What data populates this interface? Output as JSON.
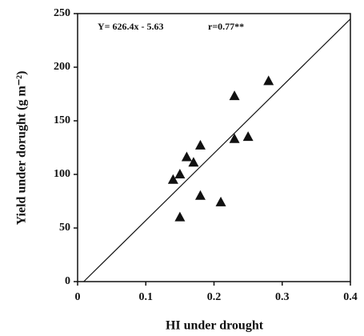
{
  "chart_data": {
    "type": "scatter",
    "x_label": "HI under drought",
    "y_label": "Yield under dorught (g m⁻²)",
    "annotations": [
      "Y= 626.4x - 5.63",
      "r=0.77**"
    ],
    "x": [
      0.14,
      0.15,
      0.15,
      0.16,
      0.17,
      0.18,
      0.18,
      0.21,
      0.23,
      0.23,
      0.25,
      0.28
    ],
    "values": [
      95,
      100,
      60,
      116,
      111,
      127,
      80,
      74,
      173,
      133,
      135,
      187
    ],
    "color": "#111111",
    "fit_line": {
      "x": [
        0.009,
        0.4
      ],
      "values": [
        0,
        245
      ]
    },
    "xlim": [
      0,
      0.4
    ],
    "xticks": [
      0,
      0.1,
      0.2,
      0.3,
      0.4
    ],
    "ylim": [
      0,
      250
    ],
    "yticks": [
      0,
      50,
      100,
      150,
      200,
      250
    ]
  }
}
